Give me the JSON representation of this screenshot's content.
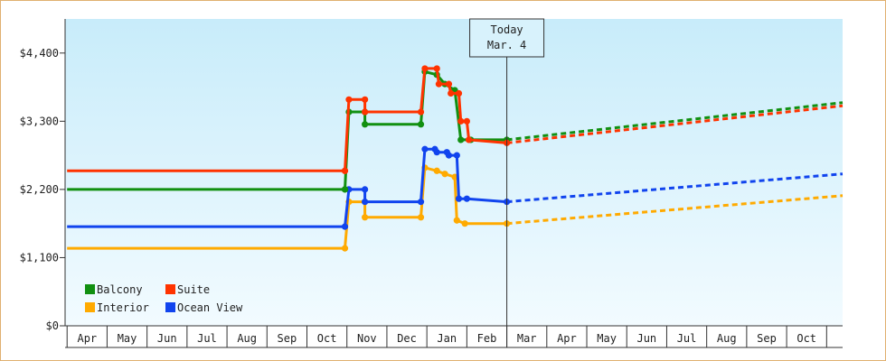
{
  "chart_data": {
    "type": "line",
    "title": "",
    "xlabel": "",
    "ylabel": "",
    "ylim": [
      0,
      4950
    ],
    "yticks": [
      0,
      1100,
      2200,
      3300,
      4400
    ],
    "ytick_labels": [
      "$0",
      "$1,100",
      "$2,200",
      "$3,300",
      "$4,400"
    ],
    "month_labels": [
      "Apr",
      "May",
      "Jun",
      "Jul",
      "Aug",
      "Sep",
      "Oct",
      "Nov",
      "Dec",
      "Jan",
      "Feb",
      "Mar",
      "Apr",
      "May",
      "Jun",
      "Jul",
      "Aug",
      "Sep",
      "Oct"
    ],
    "x_domain": [
      -0.05,
      19.4
    ],
    "today_marker": {
      "x": 11.0,
      "line1": "Today",
      "line2": "Mar. 4"
    },
    "legend": {
      "placement": "bottom-left"
    },
    "background": {
      "top": "#c8ecfa",
      "bottom": "#f2fbff"
    },
    "series": [
      {
        "name": "Balcony",
        "color": "#119011",
        "points": [
          [
            0.0,
            2200
          ],
          [
            6.95,
            2200
          ],
          [
            6.95,
            2200
          ],
          [
            7.05,
            3450
          ],
          [
            7.45,
            3450
          ],
          [
            7.45,
            3250
          ],
          [
            8.85,
            3250
          ],
          [
            8.95,
            4100
          ],
          [
            9.25,
            4050
          ],
          [
            9.45,
            3900
          ],
          [
            9.7,
            3800
          ],
          [
            9.85,
            3000
          ],
          [
            10.1,
            3000
          ],
          [
            11.0,
            3000
          ]
        ],
        "forecast": [
          [
            11.0,
            3000
          ],
          [
            19.4,
            3600
          ]
        ]
      },
      {
        "name": "Suite",
        "color": "#ff3300",
        "points": [
          [
            0.0,
            2500
          ],
          [
            6.95,
            2500
          ],
          [
            6.95,
            2500
          ],
          [
            7.05,
            3650
          ],
          [
            7.45,
            3650
          ],
          [
            7.45,
            3450
          ],
          [
            8.85,
            3450
          ],
          [
            8.95,
            4150
          ],
          [
            9.25,
            4150
          ],
          [
            9.3,
            3900
          ],
          [
            9.55,
            3900
          ],
          [
            9.6,
            3750
          ],
          [
            9.8,
            3750
          ],
          [
            9.85,
            3300
          ],
          [
            10.0,
            3300
          ],
          [
            10.05,
            3000
          ],
          [
            11.0,
            2950
          ]
        ],
        "forecast": [
          [
            11.0,
            2950
          ],
          [
            19.4,
            3550
          ]
        ]
      },
      {
        "name": "Interior",
        "color": "#ffaa00",
        "points": [
          [
            0.0,
            1250
          ],
          [
            6.95,
            1250
          ],
          [
            7.05,
            2000
          ],
          [
            7.45,
            2000
          ],
          [
            7.45,
            1750
          ],
          [
            8.85,
            1750
          ],
          [
            8.95,
            2550
          ],
          [
            9.25,
            2500
          ],
          [
            9.45,
            2450
          ],
          [
            9.7,
            2400
          ],
          [
            9.75,
            1700
          ],
          [
            9.95,
            1650
          ],
          [
            11.0,
            1650
          ]
        ],
        "forecast": [
          [
            11.0,
            1650
          ],
          [
            19.4,
            2100
          ]
        ]
      },
      {
        "name": "Ocean View",
        "color": "#1144ee",
        "points": [
          [
            0.0,
            1600
          ],
          [
            6.95,
            1600
          ],
          [
            7.05,
            2200
          ],
          [
            7.45,
            2200
          ],
          [
            7.45,
            2000
          ],
          [
            8.85,
            2000
          ],
          [
            8.95,
            2850
          ],
          [
            9.2,
            2850
          ],
          [
            9.25,
            2800
          ],
          [
            9.5,
            2800
          ],
          [
            9.55,
            2750
          ],
          [
            9.75,
            2750
          ],
          [
            9.8,
            2050
          ],
          [
            10.0,
            2050
          ],
          [
            11.0,
            2000
          ]
        ],
        "forecast": [
          [
            11.0,
            2000
          ],
          [
            19.4,
            2450
          ]
        ]
      }
    ]
  }
}
